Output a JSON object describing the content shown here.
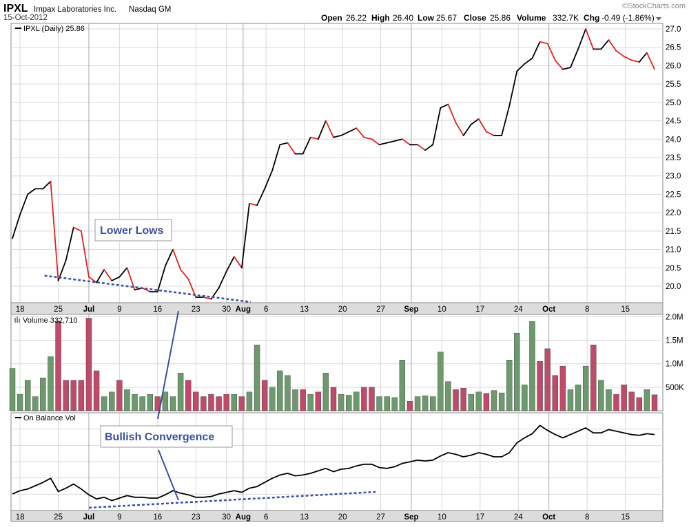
{
  "header": {
    "symbol": "IPXL",
    "company": "Impax Laboratories Inc.",
    "exchange": "Nasdaq GM",
    "date": "15-Oct-2012",
    "watermark": "©StockCharts.com",
    "quote_labels": {
      "open": "Open",
      "high": "High",
      "low": "Low",
      "close": "Close",
      "volume": "Volume",
      "chg": "Chg"
    },
    "quote_values": {
      "open": "26.22",
      "high": "26.40",
      "low": "25.67",
      "close": "25.86",
      "volume": "332.7K",
      "chg": "-0.49 (-1.86%)"
    }
  },
  "colors": {
    "up": "#000000",
    "down": "#e02020",
    "vol_up": "#6d9a6d",
    "vol_down": "#c04a6a",
    "annotation": "#3a4fa0",
    "grid": "#d8d8d8",
    "frame": "#8a8a8a",
    "tick_bg": "#dcdcdc"
  },
  "annotations": {
    "lower_lows": "Lower Lows",
    "bullish_convergence": "Bullish Convergence"
  },
  "chart_data": [
    {
      "type": "line",
      "legend": "IPXL (Daily) 25.86",
      "x_ticks": [
        "18",
        "25",
        "Jul",
        "9",
        "16",
        "23",
        "30",
        "Aug",
        "6",
        "13",
        "20",
        "27",
        "Sep",
        "10",
        "17",
        "24",
        "Oct",
        "8",
        "15"
      ],
      "y_ticks": [
        "20.0",
        "20.5",
        "21.0",
        "21.5",
        "22.0",
        "22.5",
        "23.0",
        "23.5",
        "24.0",
        "24.5",
        "25.0",
        "25.5",
        "26.0",
        "26.5",
        "27.0"
      ],
      "ylim": [
        19.55,
        27.15
      ],
      "series": [
        {
          "name": "IPXL (Daily)",
          "values": [
            21.3,
            21.95,
            22.5,
            22.65,
            22.65,
            22.85,
            20.15,
            20.7,
            21.6,
            21.5,
            20.25,
            20.1,
            20.45,
            20.15,
            20.25,
            20.5,
            19.9,
            19.95,
            19.85,
            19.85,
            20.55,
            21.0,
            20.45,
            20.2,
            19.7,
            19.7,
            19.65,
            19.95,
            20.4,
            20.8,
            20.5,
            22.25,
            22.2,
            22.65,
            23.15,
            23.85,
            23.9,
            23.6,
            23.6,
            24.05,
            24.0,
            24.5,
            24.05,
            24.1,
            24.2,
            24.3,
            24.05,
            24.0,
            23.85,
            23.9,
            23.95,
            24.0,
            23.85,
            23.85,
            23.7,
            23.85,
            24.85,
            24.95,
            24.45,
            24.1,
            24.4,
            24.55,
            24.2,
            24.1,
            24.1,
            24.9,
            25.85,
            26.05,
            26.2,
            26.65,
            26.6,
            26.15,
            25.9,
            25.95,
            26.45,
            27.0,
            26.45,
            26.45,
            26.7,
            26.4,
            26.25,
            26.15,
            26.1,
            26.35,
            25.9
          ]
        }
      ],
      "annotation_trendline": {
        "from": [
          6,
          20.25
        ],
        "to": [
          31,
          19.5
        ]
      }
    },
    {
      "type": "bar",
      "legend": "Volume 332,710",
      "y_ticks": [
        "500K",
        "1.0M",
        "1.5M",
        "2.0M"
      ],
      "ylim": [
        0,
        2050000
      ],
      "values": [
        900000,
        350000,
        650000,
        300000,
        700000,
        1150000,
        1900000,
        650000,
        650000,
        650000,
        1970000,
        850000,
        300000,
        400000,
        650000,
        450000,
        350000,
        300000,
        350000,
        300000,
        400000,
        300000,
        800000,
        650000,
        400000,
        300000,
        350000,
        300000,
        350000,
        350000,
        300000,
        400000,
        1400000,
        650000,
        500000,
        850000,
        750000,
        450000,
        450000,
        350000,
        400000,
        800000,
        500000,
        350000,
        330000,
        400000,
        500000,
        500000,
        300000,
        300000,
        280000,
        1080000,
        200000,
        300000,
        320000,
        300000,
        1250000,
        620000,
        450000,
        480000,
        350000,
        400000,
        370000,
        430000,
        380000,
        1080000,
        1650000,
        550000,
        1900000,
        1050000,
        1320000,
        750000,
        950000,
        450000,
        550000,
        950000,
        1400000,
        650000,
        450000,
        350000,
        550000,
        400000,
        280000,
        450000,
        340000
      ],
      "up": [
        true,
        true,
        true,
        true,
        true,
        true,
        false,
        false,
        false,
        false,
        false,
        false,
        true,
        true,
        false,
        true,
        true,
        true,
        true,
        false,
        true,
        true,
        true,
        false,
        false,
        false,
        false,
        false,
        false,
        true,
        false,
        true,
        true,
        false,
        true,
        true,
        true,
        true,
        false,
        true,
        false,
        true,
        false,
        true,
        true,
        true,
        false,
        false,
        true,
        true,
        true,
        true,
        false,
        true,
        true,
        true,
        true,
        true,
        false,
        false,
        true,
        true,
        false,
        true,
        true,
        true,
        true,
        true,
        true,
        false,
        false,
        false,
        false,
        true,
        true,
        true,
        false,
        true,
        true,
        false,
        false,
        false,
        false,
        true,
        false
      ]
    },
    {
      "type": "line",
      "legend": "On Balance Vol",
      "ylim": [
        0,
        100
      ],
      "values": [
        10,
        14,
        16,
        20,
        24,
        29,
        13,
        17,
        22,
        16,
        9,
        4,
        6,
        2,
        5,
        8,
        6,
        6,
        5,
        5,
        9,
        14,
        11,
        9,
        6,
        6,
        7,
        10,
        12,
        14,
        12,
        17,
        19,
        24,
        29,
        33,
        35,
        32,
        33,
        35,
        38,
        41,
        37,
        40,
        41,
        44,
        46,
        46,
        42,
        41,
        43,
        47,
        49,
        51,
        50,
        51,
        56,
        60,
        58,
        55,
        57,
        60,
        58,
        55,
        55,
        60,
        72,
        78,
        83,
        93,
        87,
        82,
        78,
        82,
        86,
        90,
        84,
        84,
        88,
        86,
        84,
        82,
        81,
        83,
        82
      ],
      "annotation_trendline": {
        "from": [
          12,
          3
        ],
        "to": [
          43,
          15
        ]
      }
    }
  ]
}
